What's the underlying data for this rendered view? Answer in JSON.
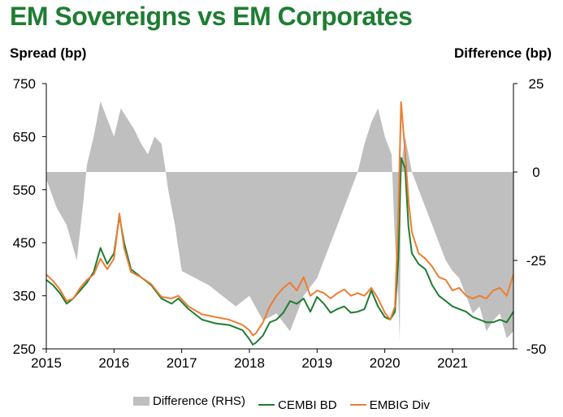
{
  "chart_data": {
    "type": "line",
    "title": "EM Sovereigns vs EM Corporates",
    "ylabel_left": "Spread (bp)",
    "ylabel_right": "Difference (bp)",
    "ylim_left": [
      250,
      750
    ],
    "yticks_left": [
      "750",
      "650",
      "550",
      "450",
      "350",
      "250"
    ],
    "ylim_right": [
      -50,
      25
    ],
    "yticks_right": [
      "25",
      "0",
      "-25",
      "-50"
    ],
    "xlim": [
      2015.0,
      2021.9
    ],
    "xticks": [
      "2015",
      "2016",
      "2017",
      "2018",
      "2019",
      "2020",
      "2021"
    ],
    "colors": {
      "diff": "#bfbfbf",
      "cembi": "#1e7d32",
      "embig": "#ed7d31",
      "title": "#1e7d32"
    },
    "series": [
      {
        "name": "CEMBI BD",
        "axis": "left",
        "x": [
          2015.0,
          2015.1,
          2015.2,
          2015.3,
          2015.4,
          2015.5,
          2015.6,
          2015.7,
          2015.8,
          2015.9,
          2016.0,
          2016.08,
          2016.15,
          2016.25,
          2016.4,
          2016.55,
          2016.7,
          2016.85,
          2016.95,
          2017.1,
          2017.3,
          2017.5,
          2017.7,
          2017.9,
          2018.0,
          2018.05,
          2018.1,
          2018.2,
          2018.3,
          2018.4,
          2018.5,
          2018.6,
          2018.7,
          2018.8,
          2018.9,
          2019.0,
          2019.1,
          2019.2,
          2019.3,
          2019.4,
          2019.5,
          2019.6,
          2019.7,
          2019.8,
          2019.9,
          2020.0,
          2020.08,
          2020.15,
          2020.2,
          2020.24,
          2020.3,
          2020.35,
          2020.4,
          2020.5,
          2020.6,
          2020.7,
          2020.8,
          2020.9,
          2021.0,
          2021.1,
          2021.2,
          2021.3,
          2021.4,
          2021.5,
          2021.6,
          2021.7,
          2021.8,
          2021.9
        ],
        "values": [
          380,
          370,
          355,
          335,
          345,
          360,
          375,
          395,
          440,
          410,
          430,
          500,
          450,
          400,
          385,
          370,
          345,
          335,
          345,
          325,
          305,
          298,
          295,
          285,
          268,
          258,
          262,
          275,
          300,
          305,
          318,
          340,
          335,
          345,
          320,
          348,
          335,
          318,
          325,
          330,
          318,
          320,
          325,
          360,
          330,
          310,
          305,
          320,
          420,
          610,
          590,
          480,
          430,
          410,
          400,
          370,
          350,
          340,
          330,
          325,
          320,
          310,
          305,
          300,
          300,
          305,
          300,
          320
        ]
      },
      {
        "name": "EMBIG Div",
        "axis": "left",
        "x": [
          2015.0,
          2015.1,
          2015.2,
          2015.3,
          2015.4,
          2015.5,
          2015.6,
          2015.7,
          2015.8,
          2015.9,
          2016.0,
          2016.08,
          2016.15,
          2016.25,
          2016.4,
          2016.55,
          2016.7,
          2016.85,
          2016.95,
          2017.1,
          2017.3,
          2017.5,
          2017.7,
          2017.9,
          2018.0,
          2018.05,
          2018.1,
          2018.2,
          2018.3,
          2018.4,
          2018.5,
          2018.6,
          2018.7,
          2018.8,
          2018.9,
          2019.0,
          2019.1,
          2019.2,
          2019.3,
          2019.4,
          2019.5,
          2019.6,
          2019.7,
          2019.8,
          2019.9,
          2020.0,
          2020.08,
          2020.15,
          2020.2,
          2020.24,
          2020.3,
          2020.35,
          2020.4,
          2020.5,
          2020.6,
          2020.7,
          2020.8,
          2020.9,
          2021.0,
          2021.1,
          2021.2,
          2021.3,
          2021.4,
          2021.5,
          2021.6,
          2021.7,
          2021.8,
          2021.9
        ],
        "values": [
          390,
          378,
          362,
          340,
          345,
          365,
          380,
          390,
          420,
          400,
          420,
          505,
          440,
          395,
          385,
          372,
          348,
          345,
          350,
          330,
          315,
          310,
          305,
          295,
          285,
          275,
          280,
          300,
          330,
          350,
          365,
          375,
          360,
          385,
          350,
          360,
          355,
          345,
          355,
          362,
          350,
          355,
          350,
          365,
          345,
          318,
          305,
          330,
          500,
          715,
          620,
          530,
          470,
          430,
          420,
          405,
          385,
          380,
          360,
          365,
          350,
          345,
          350,
          345,
          360,
          365,
          350,
          390
        ]
      },
      {
        "name": "Difference (RHS)",
        "axis": "right",
        "x": [
          2015.0,
          2015.15,
          2015.3,
          2015.45,
          2015.55,
          2015.6,
          2015.7,
          2015.8,
          2015.9,
          2016.0,
          2016.1,
          2016.2,
          2016.3,
          2016.4,
          2016.5,
          2016.6,
          2016.7,
          2016.75,
          2016.8,
          2016.9,
          2017.0,
          2017.2,
          2017.4,
          2017.6,
          2017.8,
          2018.0,
          2018.2,
          2018.4,
          2018.6,
          2018.8,
          2019.0,
          2019.2,
          2019.4,
          2019.5,
          2019.6,
          2019.7,
          2019.8,
          2019.9,
          2020.0,
          2020.1,
          2020.15,
          2020.2,
          2020.22,
          2020.24,
          2020.3,
          2020.4,
          2020.5,
          2020.6,
          2020.7,
          2020.8,
          2020.9,
          2021.0,
          2021.1,
          2021.2,
          2021.3,
          2021.4,
          2021.5,
          2021.6,
          2021.7,
          2021.8,
          2021.9
        ],
        "values": [
          -2,
          -10,
          -15,
          -25,
          -8,
          2,
          10,
          20,
          15,
          10,
          18,
          15,
          12,
          8,
          5,
          10,
          8,
          2,
          -5,
          -15,
          -28,
          -30,
          -32,
          -35,
          -38,
          -35,
          -42,
          -40,
          -45,
          -35,
          -30,
          -20,
          -10,
          -5,
          0,
          8,
          14,
          18,
          10,
          5,
          -20,
          -35,
          -48,
          2,
          10,
          0,
          -5,
          -10,
          -15,
          -20,
          -25,
          -28,
          -30,
          -35,
          -40,
          -38,
          -45,
          -42,
          -40,
          -47,
          -45
        ]
      }
    ]
  },
  "legend": {
    "items": [
      {
        "label": "Difference (RHS)"
      },
      {
        "label": "CEMBI BD"
      },
      {
        "label": "EMBIG Div"
      }
    ]
  }
}
